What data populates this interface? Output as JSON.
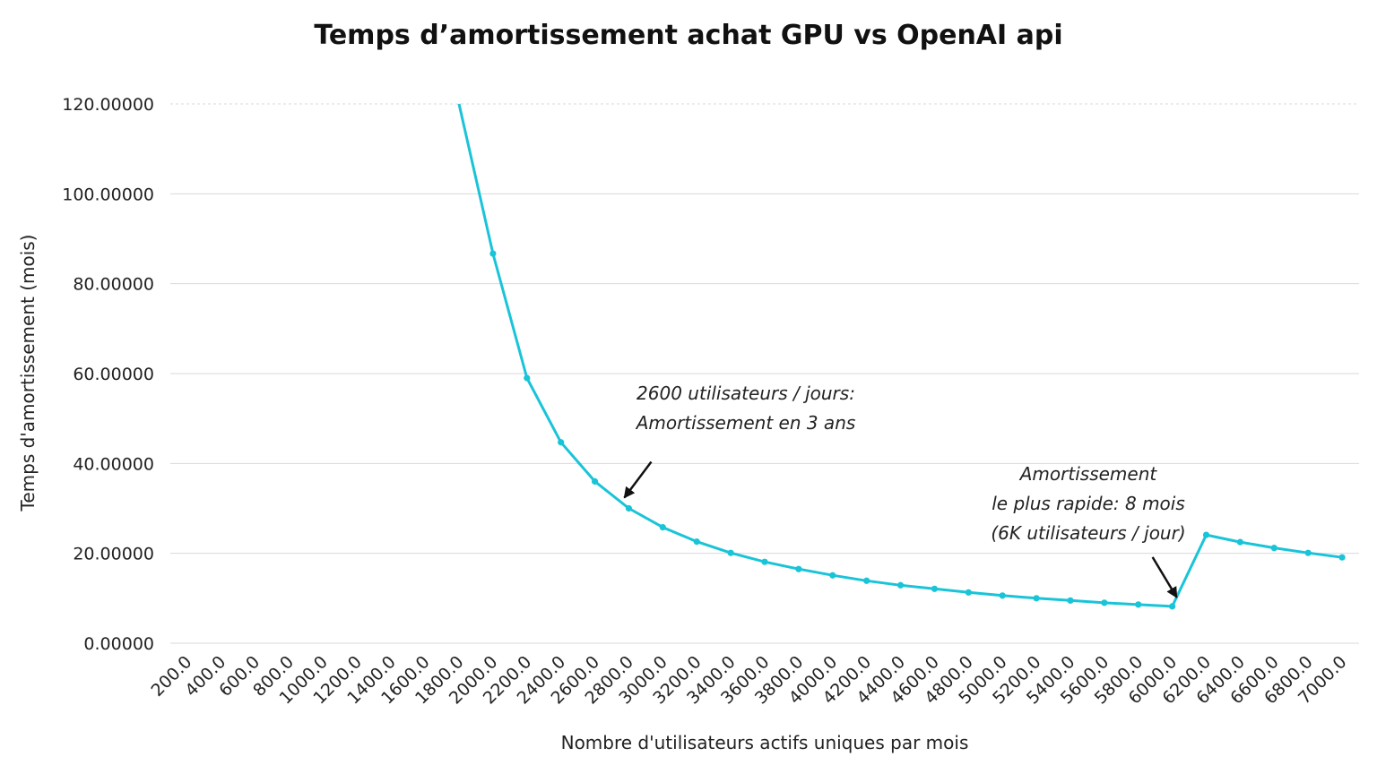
{
  "chart_data": {
    "type": "line",
    "title": "Temps d’amortissement achat GPU vs OpenAI api",
    "xlabel": "Nombre d'utilisateurs actifs uniques par mois",
    "ylabel": "Temps d'amortissement (mois)",
    "ylim": [
      0,
      120
    ],
    "y_ticks": [
      "0.00000",
      "20.00000",
      "40.00000",
      "60.00000",
      "80.00000",
      "100.00000",
      "120.00000"
    ],
    "grid": true,
    "line_color": "#19c4d8",
    "categories": [
      "200.0",
      "400.0",
      "600.0",
      "800.0",
      "1000.0",
      "1200.0",
      "1400.0",
      "1600.0",
      "1800.0",
      "2000.0",
      "2200.0",
      "2400.0",
      "2600.0",
      "2800.0",
      "3000.0",
      "3200.0",
      "3400.0",
      "3600.0",
      "3800.0",
      "4000.0",
      "4200.0",
      "4400.0",
      "4600.0",
      "4800.0",
      "5000.0",
      "5200.0",
      "5400.0",
      "5600.0",
      "5800.0",
      "6000.0",
      "6200.0",
      "6400.0",
      "6600.0",
      "6800.0",
      "7000.0"
    ],
    "series": [
      {
        "values": [
          null,
          null,
          null,
          null,
          null,
          null,
          null,
          null,
          120,
          86.7,
          59,
          44.7,
          36,
          30,
          25.8,
          22.6,
          20.1,
          18.1,
          16.5,
          15.1,
          13.9,
          12.9,
          12.1,
          11.3,
          10.6,
          10.0,
          9.5,
          9.0,
          8.6,
          8.2,
          24.1,
          22.5,
          21.2,
          20.1,
          19.1
        ]
      }
    ],
    "annotations": [
      {
        "lines": [
          "2600 utilisateurs / jours:",
          "Amortissement en 3 ans"
        ],
        "target_x": "2800.0",
        "target_y": 30
      },
      {
        "lines": [
          "Amortissement",
          "le plus rapide: 8 mois",
          "(6K utilisateurs / jour)"
        ],
        "target_x": "6000.0",
        "target_y": 8.2
      }
    ]
  }
}
